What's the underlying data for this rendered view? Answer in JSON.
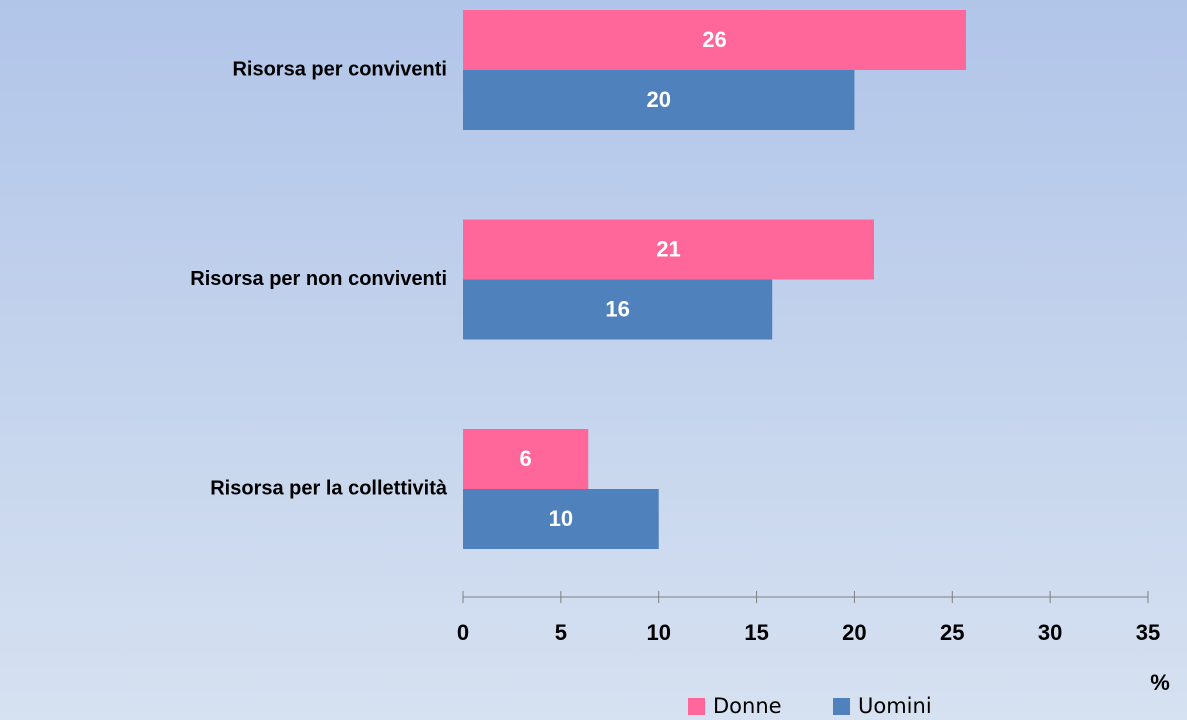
{
  "chart_data": {
    "type": "hbar",
    "categories": [
      "Risorsa per conviventi",
      "Risorsa per  non conviventi",
      "Risorsa per la collettività"
    ],
    "series": [
      {
        "name": "Donne",
        "color": "#ff6699",
        "values": [
          25.7,
          21,
          6.4
        ],
        "value_labels": [
          "26",
          "21",
          "6"
        ]
      },
      {
        "name": "Uomini",
        "color": "#4f81bd",
        "values": [
          20,
          15.8,
          10
        ],
        "value_labels": [
          "20",
          "16",
          "10"
        ]
      }
    ],
    "xlim": [
      0,
      35
    ],
    "xticks": [
      0,
      5,
      10,
      15,
      20,
      25,
      30,
      35
    ],
    "x_label": "%",
    "legend": "bottom"
  }
}
